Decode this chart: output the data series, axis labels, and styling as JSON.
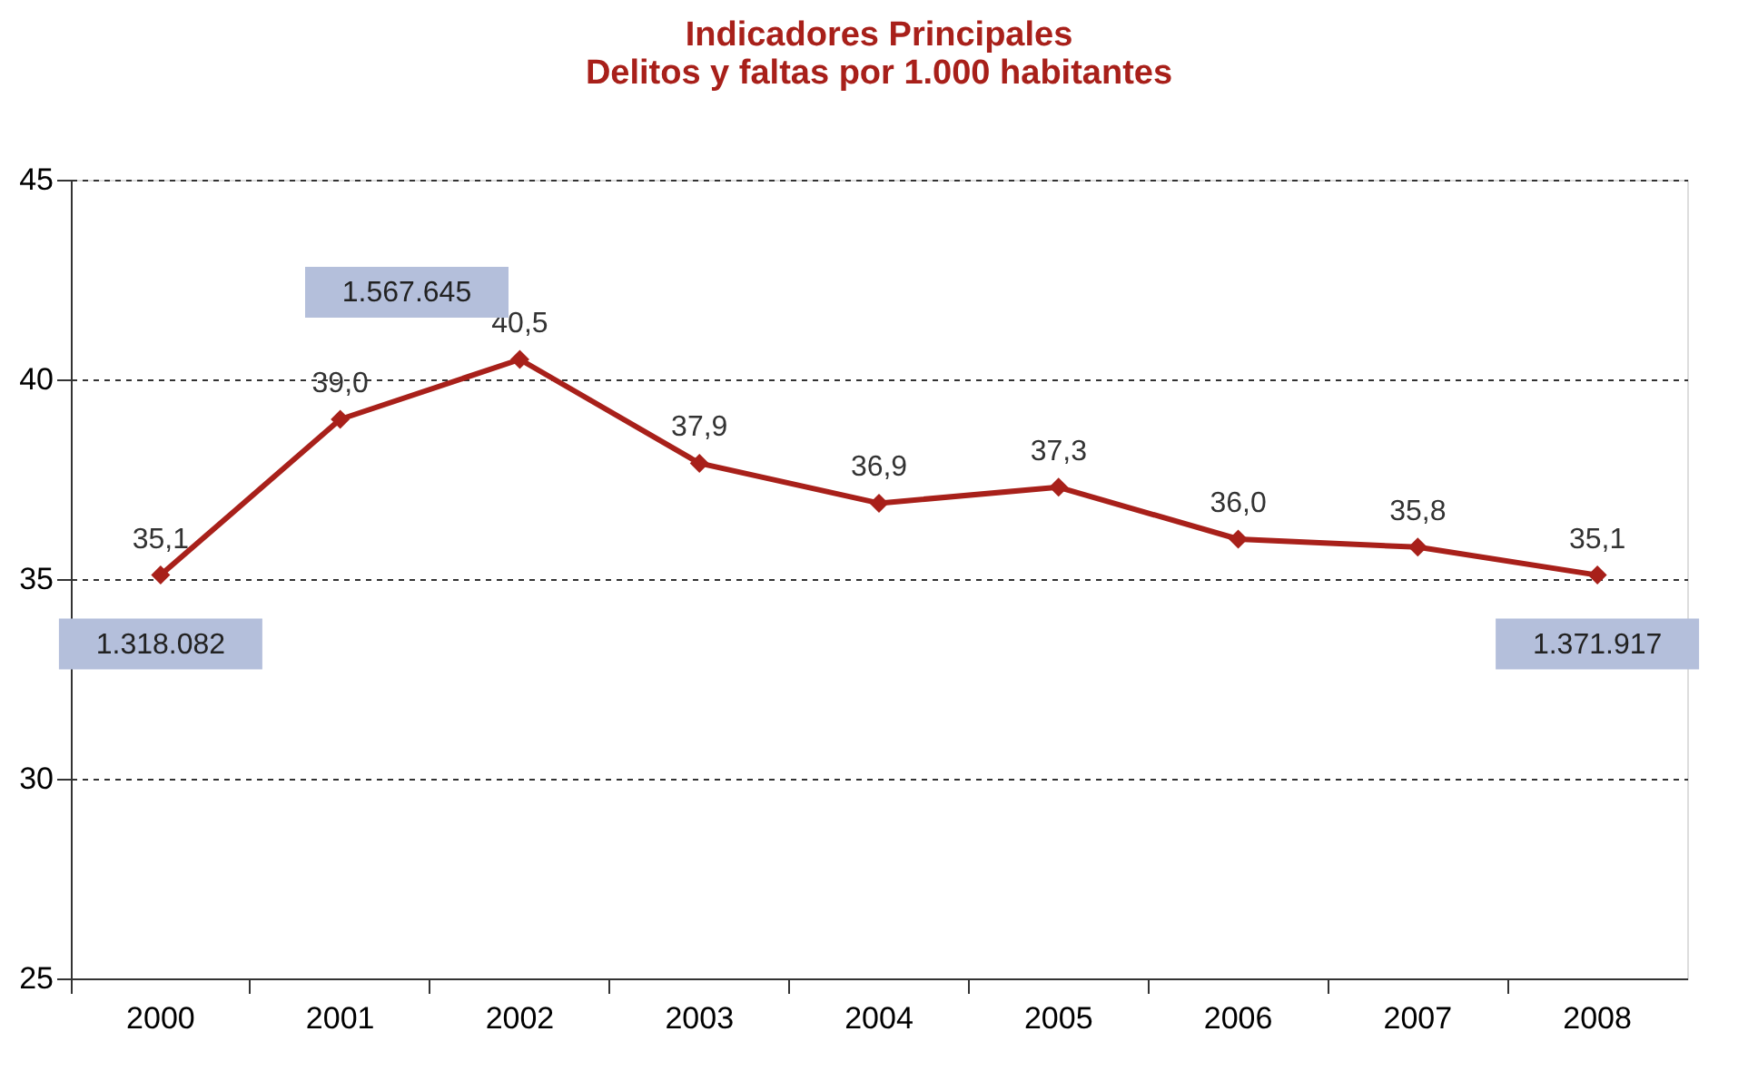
{
  "chart_data": {
    "type": "line",
    "title": [
      "Indicadores Principales",
      "Delitos y faltas por 1.000 habitantes"
    ],
    "categories": [
      "2000",
      "2001",
      "2002",
      "2003",
      "2004",
      "2005",
      "2006",
      "2007",
      "2008"
    ],
    "series": [
      {
        "color": "#a8201a",
        "values": [
          35.1,
          39.0,
          40.5,
          37.9,
          36.9,
          37.3,
          36.0,
          35.8,
          35.1
        ],
        "value_labels": [
          "35,1",
          "39,0",
          "40,5",
          "37,9",
          "36,9",
          "37,3",
          "36,0",
          "35,8",
          "35,1"
        ]
      }
    ],
    "ylim": [
      25,
      45
    ],
    "yticks": [
      25,
      30,
      35,
      40,
      45
    ],
    "grid": "y",
    "marker": "diamond",
    "line_style": "solid",
    "annotations": [
      {
        "text": "1.318.082",
        "x": "2000",
        "y": 35.1
      },
      "1.567.645",
      {
        "text": "1.371.917",
        "x": "2008",
        "y": 35.1
      }
    ]
  }
}
